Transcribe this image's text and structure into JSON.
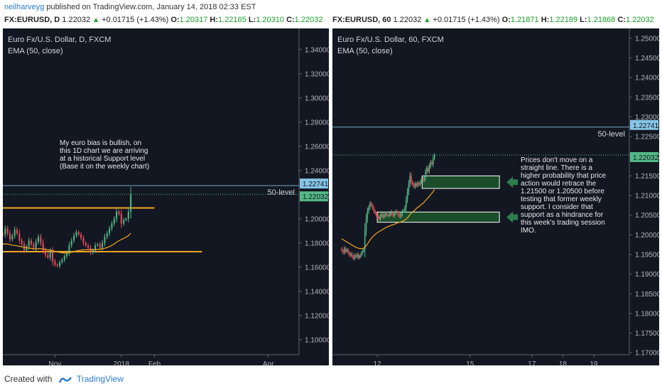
{
  "top_line": {
    "author": "neilharveyg",
    "text": "published on TradingView.com, January 14, 2018 02:33 EST"
  },
  "colors": {
    "up": "#53b987",
    "down": "#eb4d5c",
    "ema": "#f5a623",
    "support": "#f5a623",
    "bg": "#131722",
    "zone": "#1b4d2b",
    "zone_border": "#ffffff",
    "arrow": "#2e7d4f",
    "price_tag": "#86c5e6",
    "level_line": "#86c5e6"
  },
  "left_header": {
    "symbol": "FX:EURUSD, D",
    "last": "1.22032",
    "change": "+0.01715 (+1.43%)",
    "o_label": "O:",
    "o": "1.20317",
    "h_label": "H:",
    "h": "1.22165",
    "l_label": "L:",
    "l": "1.20310",
    "c_label": "C:",
    "c": "1.22032"
  },
  "right_header": {
    "symbol": "FX:EURUSD, 60",
    "last": "1.22032",
    "change": "+0.01715 (+1.43%)",
    "o_label": "O:",
    "o": "1.21871",
    "h_label": "H:",
    "h": "1.22189",
    "l_label": "L:",
    "l": "1.21868",
    "c_label": "C:",
    "c": "1.22032"
  },
  "footer": {
    "created_with": "Created with",
    "brand": "TradingView"
  },
  "chart_data": [
    {
      "type": "candlestick",
      "title": "Euro Fx/U.S. Dollar, D, FXCM",
      "indicator": "EMA (50, close)",
      "ylim": [
        1.0875,
        1.3575
      ],
      "y_ticks": [
        "1.34000",
        "1.32000",
        "1.30000",
        "1.28000",
        "1.26000",
        "1.24000",
        "1.22000",
        "1.20000",
        "1.18000",
        "1.16000",
        "1.14000",
        "1.12000",
        "1.10000"
      ],
      "x_ticks": [
        {
          "label": "Nov",
          "day": 22
        },
        {
          "label": "2018",
          "day": 50
        },
        {
          "label": "Feb",
          "day": 64
        },
        {
          "label": "Apr",
          "day": 112
        }
      ],
      "x_range": [
        0,
        125
      ],
      "price_tags": [
        {
          "text": "1.22741",
          "value": 1.22741,
          "kind": "level"
        },
        {
          "text": "1.22032",
          "value": 1.22032,
          "kind": "last"
        }
      ],
      "level_text": "50-level",
      "level_value": 1.22741,
      "support_lines": [
        {
          "from": 0,
          "to": 64,
          "value": 1.209
        },
        {
          "from": 0,
          "to": 84,
          "value": 1.1728
        }
      ],
      "annotation": "My euro bias is bullish, on this 1D chart we are arriving at a historical Support level (Base it on the weekly chart)",
      "closes": [
        1.187,
        1.192,
        1.188,
        1.183,
        1.186,
        1.191,
        1.188,
        1.182,
        1.179,
        1.174,
        1.177,
        1.182,
        1.179,
        1.176,
        1.181,
        1.185,
        1.18,
        1.174,
        1.17,
        1.168,
        1.173,
        1.165,
        1.162,
        1.161,
        1.164,
        1.166,
        1.169,
        1.172,
        1.178,
        1.182,
        1.186,
        1.189,
        1.187,
        1.184,
        1.18,
        1.178,
        1.176,
        1.172,
        1.174,
        1.178,
        1.179,
        1.176,
        1.18,
        1.185,
        1.188,
        1.192,
        1.196,
        1.2,
        1.206,
        1.204,
        1.196,
        1.199,
        1.2,
        1.206,
        1.2203
      ],
      "ema": [
        1.179,
        1.1792,
        1.179,
        1.1786,
        1.1782,
        1.1779,
        1.1776,
        1.1772,
        1.1768,
        1.1764,
        1.176,
        1.1758,
        1.1755,
        1.1752,
        1.1751,
        1.1752,
        1.1752,
        1.175,
        1.1747,
        1.1743,
        1.174,
        1.1736,
        1.1731,
        1.1726,
        1.1722,
        1.1719,
        1.1717,
        1.1717,
        1.1719,
        1.1723,
        1.1728,
        1.1734,
        1.1738,
        1.1741,
        1.1743,
        1.1744,
        1.1744,
        1.1743,
        1.1743,
        1.1745,
        1.1747,
        1.1748,
        1.1751,
        1.1756,
        1.1762,
        1.177,
        1.178,
        1.1792,
        1.1806,
        1.1819,
        1.1828,
        1.1838,
        1.1848,
        1.186,
        1.188
      ]
    },
    {
      "type": "candlestick",
      "title": "Euro Fx/U.S. Dollar, 60, FXCM",
      "indicator": "EMA (50, close)",
      "ylim": [
        1.1695,
        1.2525
      ],
      "y_ticks": [
        "1.25000",
        "1.24500",
        "1.24000",
        "1.23500",
        "1.23000",
        "1.22500",
        "1.22000",
        "1.21500",
        "1.21000",
        "1.20500",
        "1.20000",
        "1.19500",
        "1.19000",
        "1.18500",
        "1.18000",
        "1.17500",
        "1.17000"
      ],
      "x_ticks": [
        {
          "label": "12",
          "day": 12
        },
        {
          "label": "15",
          "day": 15
        },
        {
          "label": "17",
          "day": 17
        },
        {
          "label": "18",
          "day": 18
        },
        {
          "label": "19",
          "day": 19
        }
      ],
      "x_range": [
        10.55,
        20.15
      ],
      "x_start": 10.85,
      "bar_step": 0.04167,
      "price_tags": [
        {
          "text": "1.22741",
          "value": 1.22741,
          "kind": "level"
        },
        {
          "text": "1.22032",
          "value": 1.22032,
          "kind": "last"
        }
      ],
      "level_text": "50-level",
      "level_value": 1.22741,
      "zones": [
        {
          "from": 13.45,
          "to": 15.95,
          "low": 1.2118,
          "high": 1.215
        },
        {
          "from": 12.0,
          "to": 15.95,
          "low": 1.2032,
          "high": 1.2058
        }
      ],
      "annotation": "Prices don't move on a straight line. There is a higher probability that price action would retrace the 1.21500 or 1.20500 before testing that former weekly support. I consider that support as a hindrance for this week's trading session IMO.",
      "closes": [
        1.196,
        1.1955,
        1.1965,
        1.1958,
        1.1962,
        1.1955,
        1.1948,
        1.1952,
        1.1945,
        1.194,
        1.1948,
        1.1944,
        1.195,
        1.1942,
        1.1946,
        1.1952,
        1.1958,
        1.1962,
        1.201,
        1.204,
        1.206,
        1.207,
        1.208,
        1.2075,
        1.2068,
        1.206,
        1.2055,
        1.205,
        1.2045,
        1.204,
        1.2048,
        1.2052,
        1.2045,
        1.205,
        1.2055,
        1.205,
        1.2048,
        1.2052,
        1.2058,
        1.2052,
        1.2048,
        1.2055,
        1.206,
        1.2056,
        1.205,
        1.2046,
        1.2052,
        1.206,
        1.2062,
        1.207,
        1.209,
        1.211,
        1.213,
        1.215,
        1.2135,
        1.2128,
        1.2122,
        1.213,
        1.2125,
        1.2132,
        1.2128,
        1.2135,
        1.2142,
        1.2138,
        1.2145,
        1.216,
        1.217,
        1.2162,
        1.2175,
        1.2185,
        1.218,
        1.2195,
        1.2203
      ],
      "ema": [
        1.199,
        1.1988,
        1.1986,
        1.1984,
        1.1982,
        1.198,
        1.1978,
        1.1976,
        1.1974,
        1.1972,
        1.197,
        1.1968,
        1.1967,
        1.1966,
        1.1965,
        1.1965,
        1.1965,
        1.1966,
        1.1968,
        1.1972,
        1.1977,
        1.1982,
        1.1987,
        1.1991,
        1.1995,
        1.1998,
        1.2001,
        1.2004,
        1.2006,
        1.2008,
        1.201,
        1.2012,
        1.2014,
        1.2016,
        1.2018,
        1.202,
        1.2021,
        1.2022,
        1.2024,
        1.2025,
        1.2026,
        1.2027,
        1.2029,
        1.203,
        1.2031,
        1.2032,
        1.2033,
        1.2034,
        1.2036,
        1.2038,
        1.204,
        1.2043,
        1.2047,
        1.2052,
        1.2055,
        1.2058,
        1.2061,
        1.2064,
        1.2067,
        1.207,
        1.2072,
        1.2075,
        1.2078,
        1.208,
        1.2083,
        1.2087,
        1.2091,
        1.2094,
        1.2098,
        1.2102,
        1.2106,
        1.211,
        1.2115
      ]
    }
  ]
}
